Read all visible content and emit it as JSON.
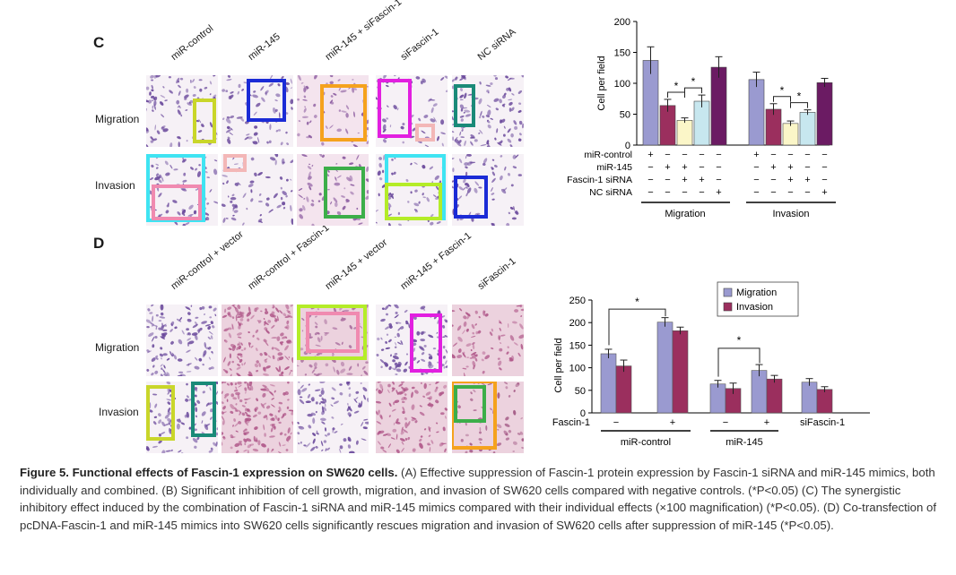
{
  "panel_c": {
    "letter": "C",
    "columns": [
      "miR-control",
      "miR-145",
      "miR-145 + siFascin-1",
      "siFascin-1",
      "NC siRNA"
    ],
    "rows": [
      "Migration",
      "Invasion"
    ]
  },
  "panel_d": {
    "letter": "D",
    "columns": [
      "miR-control + vector",
      "miR-control + Fascin-1",
      "miR-145 + vector",
      "miR-145 + Fascin-1",
      "siFascin-1"
    ],
    "rows": [
      "Migration",
      "Invasion"
    ]
  },
  "colors": {
    "stain_purple": "#6b4a9c",
    "tissue_pink": "#e6b5c9",
    "box_yellow": "#c9d62a",
    "box_blue": "#1b2bd6",
    "box_orange": "#f5a21d",
    "box_magenta": "#e21fe0",
    "box_peach": "#f3b7b7",
    "box_teal": "#1a8a78",
    "box_cyan": "#3fe4f2",
    "box_pink": "#f08ab0",
    "box_green": "#3cae49",
    "box_lime": "#b4ec28",
    "bar_periwinkle": "#9a9ad0",
    "bar_maroon": "#9b2f5e",
    "bar_lightyellow": "#fbf6c8",
    "bar_lightblue": "#c7e7ef",
    "bar_purple": "#6b1b63"
  },
  "chart_data": [
    {
      "id": "C",
      "type": "bar",
      "ylabel": "Cell per field",
      "ylim": [
        0,
        200
      ],
      "yticks": [
        0,
        50,
        100,
        150,
        200
      ],
      "groups": [
        "Migration",
        "Invasion"
      ],
      "bar_names": [
        "miR-control",
        "miR-145",
        "miR-145 + Fascin-1 siRNA",
        "Fascin-1 siRNA",
        "NC siRNA"
      ],
      "series": [
        {
          "name": "Migration",
          "values": [
            137,
            64,
            40,
            71,
            126
          ],
          "errors": [
            22,
            10,
            4,
            10,
            17
          ]
        },
        {
          "name": "Invasion",
          "values": [
            106,
            58,
            35,
            53,
            101
          ],
          "errors": [
            12,
            9,
            4,
            4,
            7
          ]
        }
      ],
      "significance": "*",
      "table_rows": [
        {
          "label": "miR-control",
          "marks": [
            "+",
            "−",
            "−",
            "−",
            "−"
          ]
        },
        {
          "label": "miR-145",
          "marks": [
            "−",
            "+",
            "+",
            "−",
            "−"
          ]
        },
        {
          "label": "Fascin-1 siRNA",
          "marks": [
            "−",
            "−",
            "+",
            "+",
            "−"
          ]
        },
        {
          "label": "NC siRNA",
          "marks": [
            "−",
            "−",
            "−",
            "−",
            "+"
          ]
        }
      ]
    },
    {
      "id": "D",
      "type": "bar",
      "ylabel": "Cell per field",
      "ylim": [
        0,
        250
      ],
      "yticks": [
        0,
        50,
        100,
        150,
        200,
        250
      ],
      "legend": [
        "Migration",
        "Invasion"
      ],
      "fascin_label": "Fascin-1",
      "x_marks": [
        "−",
        "+",
        "−",
        "+",
        "siFascin-1"
      ],
      "group_labels": [
        "miR-control",
        "miR-145"
      ],
      "significance": "*",
      "series": [
        {
          "name": "Migration",
          "values": [
            131,
            201,
            64,
            94,
            68
          ],
          "errors": [
            10,
            10,
            8,
            13,
            8
          ]
        },
        {
          "name": "Invasion",
          "values": [
            104,
            182,
            54,
            75,
            52
          ],
          "errors": [
            13,
            8,
            12,
            8,
            6
          ]
        }
      ]
    }
  ],
  "caption": {
    "title": "Figure 5. Functional effects of Fascin-1 expression on SW620 cells.",
    "body": " (A) Effective suppression of Fascin-1 protein expression by Fascin-1 siRNA and miR-145 mimics, both individually and combined. (B) Significant inhibition of cell growth, migration, and invasion of SW620 cells compared with negative controls. (*P<0.05) (C) The synergistic inhibitory effect induced by the combination of Fascin-1 siRNA and miR-145 mimics compared with their individual effects (×100 magnification) (*P<0.05). (D) Co-transfection of pcDNA-Fascin-1 and miR-145 mimics into SW620 cells significantly rescues migration and invasion of SW620 cells after suppression of miR-145 (*P<0.05)."
  }
}
